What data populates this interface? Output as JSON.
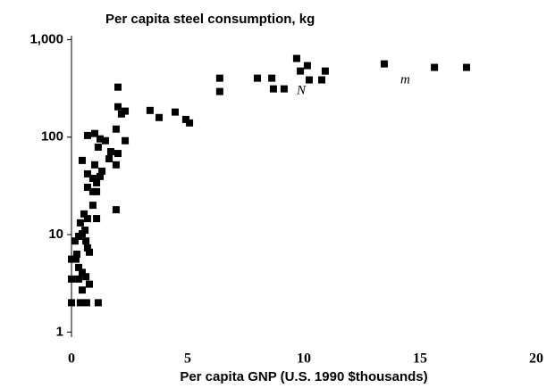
{
  "chart_data": {
    "type": "scatter",
    "title": "Per capita steel consumption, kg",
    "x_label": "Per capita GNP (U.S. 1990 $thousands)",
    "x": [
      0,
      0,
      0,
      0.19,
      0.31,
      0.38,
      0.46,
      0.31,
      0.23,
      0.15,
      0.31,
      0.46,
      0.58,
      0.38,
      0.54,
      0.69,
      0.62,
      0.69,
      0.77,
      0.46,
      0.62,
      0.77,
      0.65,
      1.15,
      0.46,
      0.69,
      0.69,
      0.92,
      1.08,
      1.23,
      1.0,
      1.31,
      1.15,
      1.46,
      1.69,
      1.62,
      1.23,
      0.69,
      1.0,
      0.92,
      1.08,
      0.92,
      1.08,
      1.92,
      1.92,
      2.0,
      1.92,
      2.0,
      2.0,
      2.15,
      2.31,
      2.31,
      3.38,
      3.77,
      4.46,
      4.92,
      5.08,
      6.38,
      6.38,
      8.0,
      8.62,
      8.69,
      9.15,
      9.69,
      9.85,
      10.15,
      10.23,
      10.77,
      10.92,
      13.46,
      15.62,
      17.0
    ],
    "y": [
      5.6,
      3.5,
      2.0,
      5.6,
      3.5,
      2.0,
      2.7,
      4.6,
      6.3,
      8.6,
      9.6,
      10.2,
      11.1,
      13.2,
      16.3,
      14.6,
      8.6,
      7.3,
      6.6,
      4.1,
      3.7,
      3.1,
      2.0,
      2.0,
      57.7,
      42,
      30.6,
      37.8,
      34,
      39.5,
      52,
      44.8,
      79,
      92,
      71,
      60,
      96,
      104,
      109,
      20,
      14.6,
      27.6,
      27.6,
      18,
      52,
      68,
      121,
      205,
      326,
      173,
      92,
      185,
      188,
      159,
      181,
      152,
      140,
      403,
      294,
      403,
      403,
      313,
      313,
      642,
      477,
      542,
      387,
      387,
      477,
      565,
      520,
      520
    ],
    "color": "#000000",
    "log_y": true,
    "xlim": [
      0,
      20
    ],
    "ylim": [
      0.85,
      1100
    ],
    "xticks": [
      0,
      5,
      10,
      15,
      20
    ],
    "yticks": [
      1,
      10,
      100,
      {
        "value": 1000,
        "label": "1,000"
      }
    ],
    "annotations": [
      "N",
      "m"
    ]
  }
}
